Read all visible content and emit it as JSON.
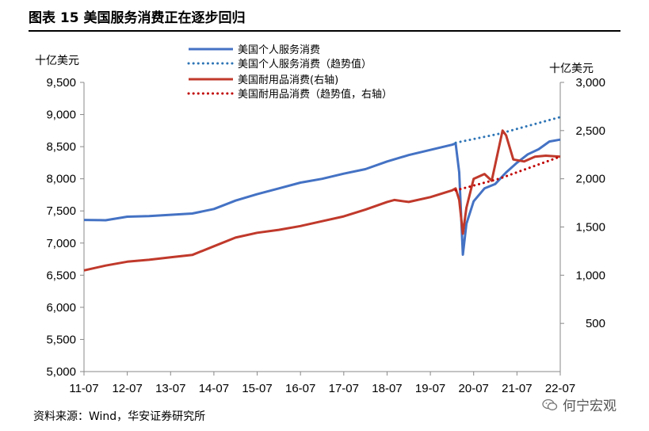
{
  "header": {
    "title": "图表 15 美国服务消费正在逐步回归"
  },
  "footer": {
    "source": "资料来源：Wind，华安证券研究所",
    "watermark": "何宁宏观"
  },
  "icons": {
    "watermark_icon": "wechat-icon"
  },
  "chart_data": {
    "type": "line",
    "title": "图表 15 美国服务消费正在逐步回归",
    "y_left": {
      "label": "十亿美元",
      "range": [
        5000,
        9500
      ],
      "ticks": [
        "9,500",
        "9,000",
        "8,500",
        "8,000",
        "7,500",
        "7,000",
        "6,500",
        "6,000",
        "5,500",
        "5,000"
      ]
    },
    "y_right": {
      "label": "十亿美元",
      "range": [
        0,
        3000
      ],
      "ticks": [
        "3,000",
        "2,500",
        "2,000",
        "1,500",
        "1,000",
        "500"
      ]
    },
    "x": {
      "range": [
        "2011-07",
        "2022-07"
      ],
      "ticks": [
        "11-07",
        "12-07",
        "13-07",
        "14-07",
        "15-07",
        "16-07",
        "17-07",
        "18-07",
        "19-07",
        "20-07",
        "21-07",
        "22-07"
      ]
    },
    "grid": false,
    "legend_position": "top",
    "series": [
      {
        "name": "美国个人服务消费",
        "axis": "left",
        "style": "solid",
        "color": "#4472C4",
        "points": [
          [
            "2011-07",
            7360
          ],
          [
            "2012-01",
            7355
          ],
          [
            "2012-07",
            7410
          ],
          [
            "2013-01",
            7420
          ],
          [
            "2013-07",
            7440
          ],
          [
            "2014-01",
            7460
          ],
          [
            "2014-07",
            7530
          ],
          [
            "2015-01",
            7660
          ],
          [
            "2015-07",
            7760
          ],
          [
            "2016-01",
            7850
          ],
          [
            "2016-07",
            7940
          ],
          [
            "2017-01",
            8000
          ],
          [
            "2017-07",
            8080
          ],
          [
            "2018-01",
            8150
          ],
          [
            "2018-07",
            8270
          ],
          [
            "2019-01",
            8370
          ],
          [
            "2019-07",
            8450
          ],
          [
            "2020-01",
            8530
          ],
          [
            "2020-02",
            8550
          ],
          [
            "2020-03",
            8100
          ],
          [
            "2020-04",
            6820
          ],
          [
            "2020-05",
            7300
          ],
          [
            "2020-07",
            7650
          ],
          [
            "2020-10",
            7850
          ],
          [
            "2021-01",
            7920
          ],
          [
            "2021-04",
            8100
          ],
          [
            "2021-07",
            8250
          ],
          [
            "2021-10",
            8380
          ],
          [
            "2022-01",
            8460
          ],
          [
            "2022-04",
            8580
          ],
          [
            "2022-07",
            8610
          ]
        ]
      },
      {
        "name": "美国个人服务消费（趋势值）",
        "axis": "left",
        "style": "dotted",
        "color": "#2E75B6",
        "points": [
          [
            "2020-02",
            8560
          ],
          [
            "2021-02",
            8700
          ],
          [
            "2022-07",
            8960
          ]
        ]
      },
      {
        "name": "美国耐用品消费(右轴)",
        "axis": "right",
        "style": "solid",
        "color": "#C0392B",
        "points": [
          [
            "2011-07",
            1050
          ],
          [
            "2012-01",
            1100
          ],
          [
            "2012-07",
            1140
          ],
          [
            "2013-01",
            1160
          ],
          [
            "2013-07",
            1185
          ],
          [
            "2014-01",
            1210
          ],
          [
            "2014-07",
            1300
          ],
          [
            "2015-01",
            1390
          ],
          [
            "2015-07",
            1440
          ],
          [
            "2016-01",
            1470
          ],
          [
            "2016-07",
            1510
          ],
          [
            "2017-01",
            1560
          ],
          [
            "2017-07",
            1610
          ],
          [
            "2018-01",
            1680
          ],
          [
            "2018-07",
            1760
          ],
          [
            "2018-09",
            1780
          ],
          [
            "2019-01",
            1760
          ],
          [
            "2019-07",
            1810
          ],
          [
            "2020-01",
            1880
          ],
          [
            "2020-02",
            1900
          ],
          [
            "2020-03",
            1780
          ],
          [
            "2020-04",
            1430
          ],
          [
            "2020-05",
            1700
          ],
          [
            "2020-07",
            2000
          ],
          [
            "2020-10",
            2050
          ],
          [
            "2020-12",
            1980
          ],
          [
            "2021-01",
            2150
          ],
          [
            "2021-03",
            2500
          ],
          [
            "2021-04",
            2450
          ],
          [
            "2021-06",
            2200
          ],
          [
            "2021-09",
            2180
          ],
          [
            "2021-12",
            2230
          ],
          [
            "2022-03",
            2240
          ],
          [
            "2022-07",
            2230
          ]
        ]
      },
      {
        "name": "美国耐用品消费（趋势值，右轴）",
        "axis": "right",
        "style": "dotted",
        "color": "#C00000",
        "points": [
          [
            "2020-02",
            1880
          ],
          [
            "2021-02",
            2000
          ],
          [
            "2022-07",
            2230
          ]
        ]
      }
    ]
  }
}
